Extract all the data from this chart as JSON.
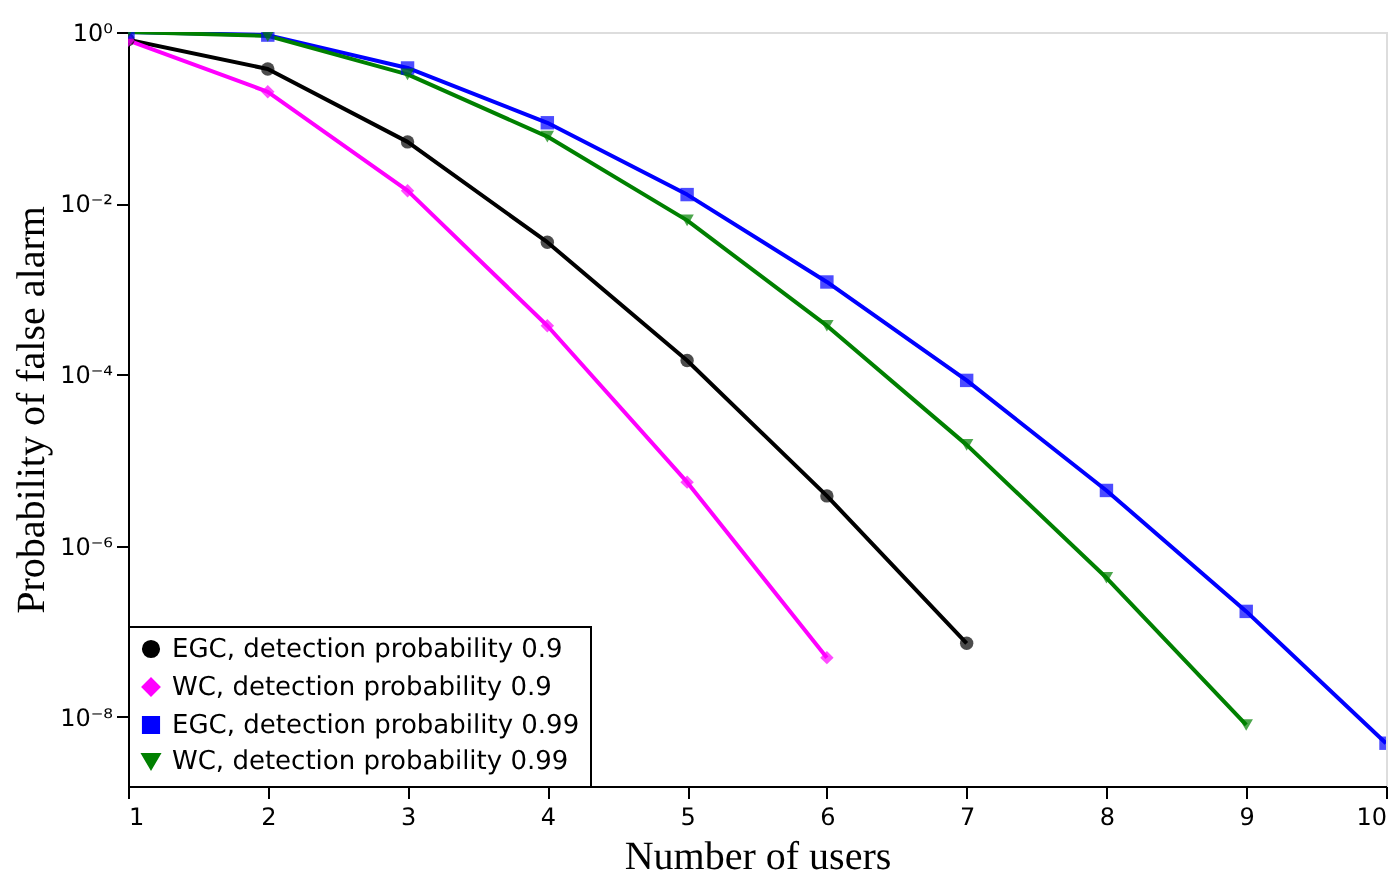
{
  "chart_data": {
    "type": "line",
    "xlabel": "Number of users",
    "ylabel": "Probability of false alarm",
    "x": [
      1,
      2,
      3,
      4,
      5,
      6,
      7,
      8,
      9,
      10
    ],
    "series": [
      {
        "name": "EGC, detection probability 0.9",
        "color": "#000000",
        "marker": "circle",
        "values": [
          0.81,
          0.37,
          0.052,
          0.0035,
          0.000145,
          3.8e-06,
          7.2e-08,
          null,
          null,
          null
        ]
      },
      {
        "name": "WC, detection probability 0.9",
        "color": "#ff00ff",
        "marker": "diamond",
        "values": [
          0.8,
          0.2,
          0.014,
          0.00037,
          5.5e-06,
          4.9e-08,
          null,
          null,
          null,
          null
        ]
      },
      {
        "name": "EGC, detection probability 0.99",
        "color": "#0000ff",
        "marker": "square",
        "values": [
          1.0,
          0.92,
          0.38,
          0.087,
          0.0126,
          0.0012,
          8.5e-05,
          4.4e-06,
          1.7e-07,
          4.9e-09
        ]
      },
      {
        "name": "WC, detection probability 0.99",
        "color": "#008000",
        "marker": "triangle",
        "values": [
          1.0,
          0.9,
          0.32,
          0.06,
          0.0063,
          0.00037,
          1.5e-05,
          4.2e-07,
          8e-09,
          null
        ]
      }
    ],
    "log": "y",
    "xlim": [
      1,
      10
    ],
    "ylim": [
      1.55e-09,
      1
    ],
    "xticks": [
      1,
      2,
      3,
      4,
      5,
      6,
      7,
      8,
      9,
      10
    ],
    "yticks": [
      {
        "value": 1,
        "label": "10⁰"
      },
      {
        "value": 0.01,
        "label": "10⁻²"
      },
      {
        "value": 0.0001,
        "label": "10⁻⁴"
      },
      {
        "value": 1e-06,
        "label": "10⁻⁶"
      },
      {
        "value": 1e-08,
        "label": "10⁻⁸"
      }
    ],
    "grid": false,
    "legend": "bottom left",
    "line_style": "solid"
  }
}
